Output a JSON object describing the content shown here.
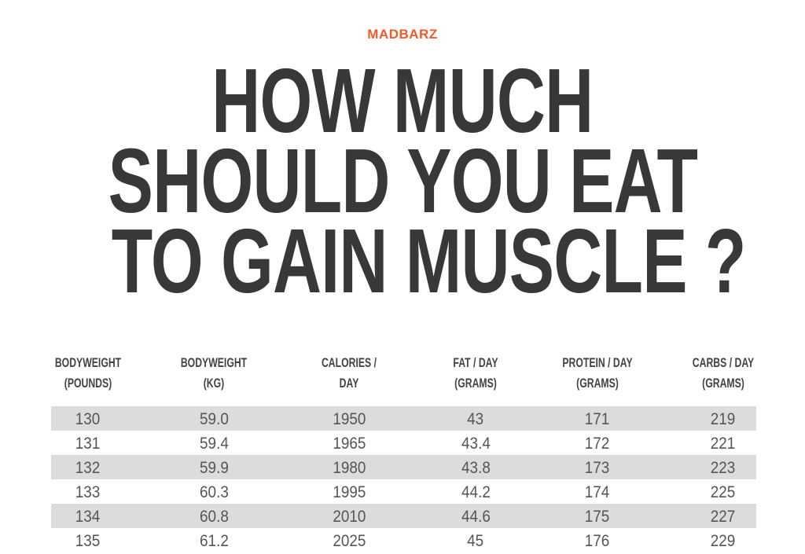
{
  "logo": "MADBARZ",
  "title": [
    "HOW MUCH",
    "SHOULD YOU EAT",
    "TO GAIN MUSCLE ?"
  ],
  "table": {
    "headers": [
      [
        "BODYWEIGHT",
        "(POUNDS)"
      ],
      [
        "BODYWEIGHT",
        "(KG)"
      ],
      [
        "CALORIES /",
        "DAY"
      ],
      [
        "FAT / DAY",
        "(GRAMS)"
      ],
      [
        "PROTEIN / DAY",
        "(GRAMS)"
      ],
      [
        "CARBS / DAY",
        "(GRAMS)"
      ]
    ],
    "rows": [
      [
        "130",
        "59.0",
        "1950",
        "43",
        "171",
        "219"
      ],
      [
        "131",
        "59.4",
        "1965",
        "43.4",
        "172",
        "221"
      ],
      [
        "132",
        "59.9",
        "1980",
        "43.8",
        "173",
        "223"
      ],
      [
        "133",
        "60.3",
        "1995",
        "44.2",
        "174",
        "225"
      ],
      [
        "134",
        "60.8",
        "2010",
        "44.6",
        "175",
        "227"
      ],
      [
        "135",
        "61.2",
        "2025",
        "45",
        "176",
        "229"
      ]
    ]
  },
  "colors": {
    "brand": "#f05a28",
    "title": "#383838",
    "row_shade": "#dcdcdc"
  }
}
